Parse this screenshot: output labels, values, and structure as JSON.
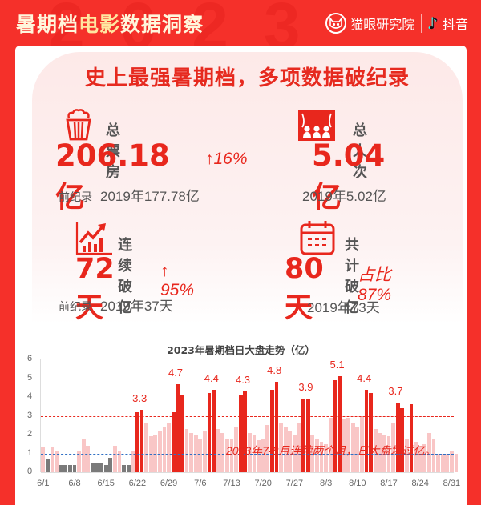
{
  "header": {
    "background_year": "2023",
    "title_part1": "暑期档",
    "title_part2": "电影",
    "title_part3": "数据洞察",
    "brand1": "猫眼研究院",
    "brand2": "抖音"
  },
  "headline": "史上最强暑期档，多项数据破纪录",
  "stats": {
    "box_office": {
      "label": "总票房",
      "value": "206.18亿",
      "delta": "↑16%",
      "prev_label": "前纪录",
      "prev_value": "2019年177.78亿"
    },
    "admissions": {
      "label": "总人次",
      "value": "5.04亿",
      "prev_value": "2019年5.02亿"
    },
    "streak": {
      "label": "连续破亿",
      "value": "72天",
      "delta": "↑ 95%",
      "prev_label": "前纪录",
      "prev_value": "2019年37天"
    },
    "total_days": {
      "label": "共计破亿",
      "value": "80天",
      "delta": "占比87%",
      "prev_value": "2019年73天"
    }
  },
  "colors": {
    "brand_red": "#f5302a",
    "accent_red": "#e8271d",
    "highlight_bar": "#e8271d",
    "normal_bar": "#f9c6c6",
    "below_1_bar": "#7a7a7a",
    "ref_line_3": "#e8271d",
    "ref_line_1": "#2f6fc4"
  },
  "chart_data": {
    "type": "bar",
    "title": "2023年暑期档日大盘走势（亿）",
    "xlabel": "",
    "ylabel": "亿",
    "ylim": [
      0,
      6
    ],
    "yticks": [
      0,
      1,
      2,
      3,
      4,
      5,
      6
    ],
    "xticks": [
      "6/1",
      "6/8",
      "6/15",
      "6/22",
      "6/29",
      "7/6",
      "7/13",
      "7/20",
      "7/27",
      "8/3",
      "8/10",
      "8/17",
      "8/24",
      "8/31"
    ],
    "reference_lines": [
      {
        "y": 3,
        "color": "red",
        "style": "dashed"
      },
      {
        "y": 1,
        "color": "blue",
        "style": "dashed"
      }
    ],
    "start_date": "6/1",
    "values": [
      1.3,
      0.7,
      1.3,
      1.1,
      0.4,
      0.4,
      0.4,
      0.4,
      1.1,
      1.8,
      1.4,
      0.5,
      0.45,
      0.45,
      0.4,
      0.75,
      1.4,
      1.1,
      0.4,
      0.4,
      1.1,
      3.2,
      3.3,
      2.6,
      1.9,
      2.0,
      2.2,
      2.4,
      2.6,
      3.2,
      4.7,
      4.1,
      2.3,
      2.1,
      2.0,
      1.8,
      2.2,
      4.2,
      4.4,
      2.3,
      2.1,
      1.8,
      1.8,
      2.4,
      4.1,
      4.3,
      2.1,
      2.0,
      1.7,
      1.8,
      2.5,
      4.4,
      4.8,
      2.6,
      2.4,
      2.2,
      2.0,
      2.6,
      3.9,
      3.9,
      2.0,
      1.8,
      1.6,
      1.5,
      2.9,
      4.9,
      5.1,
      2.8,
      2.9,
      2.6,
      2.4,
      3.0,
      4.4,
      4.2,
      2.3,
      2.1,
      2.0,
      1.9,
      2.6,
      3.7,
      3.4,
      1.8,
      3.6,
      1.6,
      1.4,
      1.5,
      2.1,
      1.8,
      1.0,
      1.0,
      1.0,
      1.1,
      1.0
    ],
    "highlight_dates": [
      "6/22",
      "6/23",
      "6/30",
      "7/1",
      "7/2",
      "7/8",
      "7/9",
      "7/15",
      "7/16",
      "7/22",
      "7/23",
      "7/29",
      "7/30",
      "8/5",
      "8/6",
      "8/12",
      "8/13",
      "8/19",
      "8/20",
      "8/22"
    ],
    "annotations": [
      {
        "date": "6/23",
        "text": "3.3"
      },
      {
        "date": "7/1",
        "text": "4.7"
      },
      {
        "date": "7/9",
        "text": "4.4"
      },
      {
        "date": "7/16",
        "text": "4.3"
      },
      {
        "date": "7/23",
        "text": "4.8"
      },
      {
        "date": "7/30",
        "text": "3.9"
      },
      {
        "date": "8/6",
        "text": "5.1"
      },
      {
        "date": "8/12",
        "text": "4.4"
      },
      {
        "date": "8/19",
        "text": "3.7"
      }
    ],
    "legend": null,
    "grid": false
  },
  "footnote": "2023年7-8月连续两个月，日大盘均过亿。"
}
